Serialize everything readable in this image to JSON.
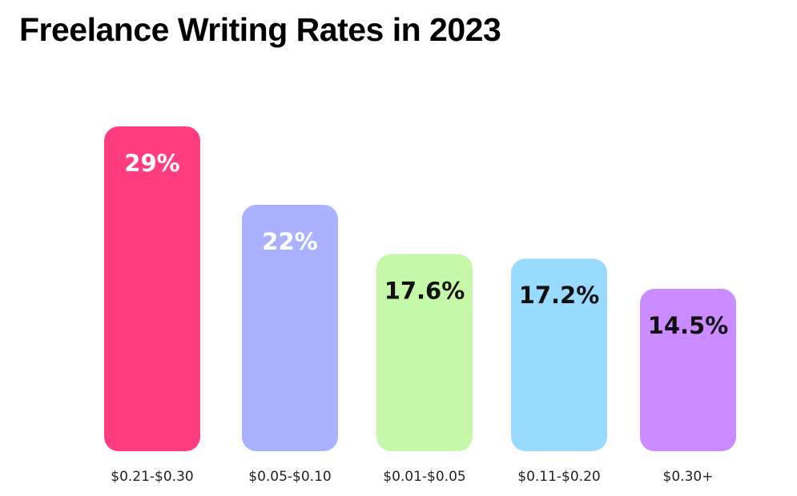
{
  "chart_data": {
    "type": "bar",
    "title": "Freelance Writing Rates in 2023",
    "categories": [
      "$0.21-$0.30",
      "$0.05-$0.10",
      "$0.01-$0.05",
      "$0.11-$0.20",
      "$0.30+"
    ],
    "values": [
      29,
      22,
      17.6,
      17.2,
      14.5
    ],
    "value_labels": [
      "29%",
      "22%",
      "17.6%",
      "17.2%",
      "14.5%"
    ],
    "colors": [
      "#ff3d7f",
      "#aab2ff",
      "#c6f8a9",
      "#99dbff",
      "#c98bff"
    ],
    "value_label_colors": [
      "#ffffff",
      "#ffffff",
      "#111111",
      "#111111",
      "#111111"
    ],
    "xlabel": "",
    "ylabel": "",
    "ylim": [
      0,
      29
    ],
    "grid": false,
    "legend": "none"
  }
}
